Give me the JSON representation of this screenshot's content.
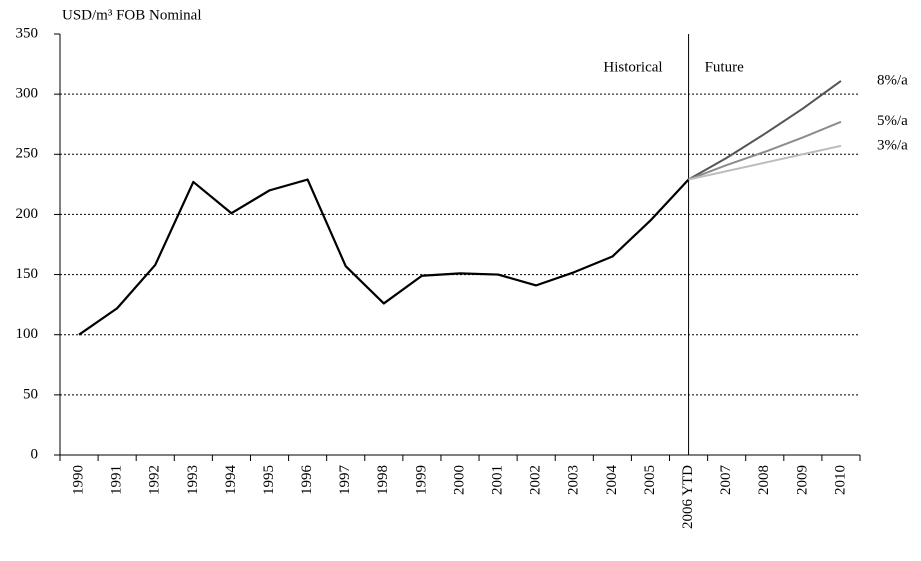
{
  "chart_data": {
    "type": "line",
    "y_label": "USD/m³ FOB Nominal",
    "annotations": [
      "Historical",
      "Future"
    ],
    "categories": [
      "1990",
      "1991",
      "1992",
      "1993",
      "1994",
      "1995",
      "1996",
      "1997",
      "1998",
      "1999",
      "2000",
      "2001",
      "2002",
      "2003",
      "2004",
      "2005",
      "2006 YTD",
      "2007",
      "2008",
      "2009",
      "2010"
    ],
    "series": [
      {
        "color": "#000000",
        "values": [
          100,
          122,
          158,
          227,
          201,
          220,
          229,
          157,
          126,
          149,
          151,
          150,
          141,
          152,
          165,
          195,
          229,
          null,
          null,
          null,
          null
        ]
      },
      {
        "name": "8%/a",
        "color": "#555555",
        "values": [
          null,
          null,
          null,
          null,
          null,
          null,
          null,
          null,
          null,
          null,
          null,
          null,
          null,
          null,
          null,
          null,
          229,
          247,
          267,
          288,
          311
        ]
      },
      {
        "name": "5%/a",
        "color": "#8c8c8c",
        "values": [
          null,
          null,
          null,
          null,
          null,
          null,
          null,
          null,
          null,
          null,
          null,
          null,
          null,
          null,
          null,
          null,
          229,
          241,
          252,
          264,
          277
        ]
      },
      {
        "name": "3%/a",
        "color": "#bdbdbd",
        "values": [
          null,
          null,
          null,
          null,
          null,
          null,
          null,
          null,
          null,
          null,
          null,
          null,
          null,
          null,
          null,
          null,
          229,
          236,
          243,
          250,
          257
        ]
      }
    ],
    "ylim": [
      0,
      350
    ],
    "yticks": [
      0,
      50,
      100,
      150,
      200,
      250,
      300,
      350
    ],
    "grid": true
  }
}
